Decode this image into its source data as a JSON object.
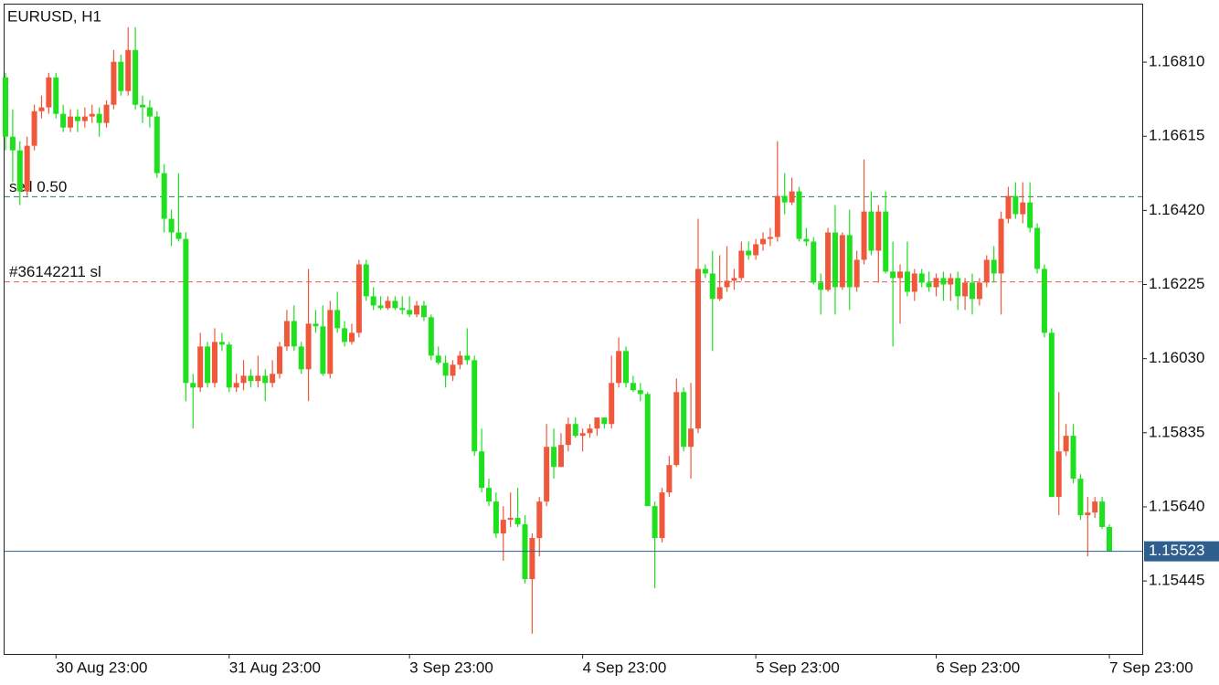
{
  "chart_data": {
    "type": "candlestick",
    "title": "EURUSD, H1",
    "categories": [
      null,
      null,
      null,
      null,
      null,
      null,
      null,
      "30 Aug 23:00",
      null,
      null,
      null,
      null,
      null,
      null,
      null,
      null,
      null,
      null,
      null,
      null,
      null,
      null,
      null,
      null,
      null,
      null,
      null,
      null,
      null,
      null,
      null,
      "31 Aug 23:00",
      null,
      null,
      null,
      null,
      null,
      null,
      null,
      null,
      null,
      null,
      null,
      null,
      null,
      null,
      null,
      null,
      null,
      null,
      null,
      null,
      null,
      null,
      null,
      null,
      "3 Sep 23:00",
      null,
      null,
      null,
      null,
      null,
      null,
      null,
      null,
      null,
      null,
      null,
      null,
      null,
      null,
      null,
      null,
      null,
      null,
      null,
      null,
      null,
      null,
      null,
      "4 Sep 23:00",
      null,
      null,
      null,
      null,
      null,
      null,
      null,
      null,
      null,
      null,
      null,
      null,
      null,
      null,
      null,
      null,
      null,
      null,
      null,
      null,
      null,
      null,
      null,
      "5 Sep 23:00",
      null,
      null,
      null,
      null,
      null,
      null,
      null,
      null,
      null,
      null,
      null,
      null,
      null,
      null,
      null,
      null,
      null,
      null,
      null,
      null,
      null,
      null,
      null,
      null,
      "6 Sep 23:00",
      null,
      null,
      null,
      null,
      null,
      null,
      null,
      null,
      null,
      null,
      null,
      null,
      null,
      null,
      null,
      null,
      null,
      null,
      null,
      null,
      null,
      null,
      null,
      "7 Sep 23:00"
    ],
    "values": [
      [
        1.1677,
        1.16782,
        1.16578,
        1.16614
      ],
      [
        1.16614,
        1.16686,
        1.16494,
        1.16578
      ],
      [
        1.16578,
        1.16602,
        1.16434,
        1.1647
      ],
      [
        1.1647,
        1.16614,
        1.16458,
        1.1659
      ],
      [
        1.1659,
        1.16698,
        1.16578,
        1.16681
      ],
      [
        1.16681,
        1.16722,
        1.16662,
        1.16691
      ],
      [
        1.16691,
        1.16782,
        1.16674,
        1.1677
      ],
      [
        1.1677,
        1.16782,
        1.16662,
        1.16674
      ],
      [
        1.16674,
        1.16698,
        1.16626,
        1.16638
      ],
      [
        1.16638,
        1.16686,
        1.16626,
        1.16667
      ],
      [
        1.16667,
        1.16686,
        1.16626,
        1.16655
      ],
      [
        1.16655,
        1.16691,
        1.16638,
        1.16667
      ],
      [
        1.16667,
        1.16698,
        1.1665,
        1.16674
      ],
      [
        1.16674,
        1.16691,
        1.16614,
        1.1665
      ],
      [
        1.1665,
        1.1671,
        1.16638,
        1.16698
      ],
      [
        1.16698,
        1.16842,
        1.16686,
        1.16811
      ],
      [
        1.16811,
        1.1683,
        1.16722,
        1.16734
      ],
      [
        1.16734,
        1.16902,
        1.16722,
        1.16842
      ],
      [
        1.16842,
        1.16902,
        1.16686,
        1.16698
      ],
      [
        1.16698,
        1.16722,
        1.1665,
        1.16691
      ],
      [
        1.16691,
        1.1671,
        1.16638,
        1.16667
      ],
      [
        1.16667,
        1.16681,
        1.16506,
        1.16518
      ],
      [
        1.16518,
        1.16542,
        1.16362,
        1.16398
      ],
      [
        1.16398,
        1.16422,
        1.16326,
        1.16362
      ],
      [
        1.16362,
        1.16518,
        1.16338,
        1.16345
      ],
      [
        1.16345,
        1.16362,
        1.15918,
        1.15966
      ],
      [
        1.15966,
        1.1599,
        1.15846,
        1.15954
      ],
      [
        1.15954,
        1.16098,
        1.15942,
        1.16062
      ],
      [
        1.16062,
        1.16074,
        1.15954,
        1.15966
      ],
      [
        1.15966,
        1.1611,
        1.15954,
        1.16074
      ],
      [
        1.16074,
        1.16098,
        1.1605,
        1.16067
      ],
      [
        1.16067,
        1.16074,
        1.15942,
        1.15954
      ],
      [
        1.15954,
        1.1599,
        1.15942,
        1.15966
      ],
      [
        1.15966,
        1.16026,
        1.15947,
        1.15985
      ],
      [
        1.15985,
        1.16002,
        1.15954,
        1.15971
      ],
      [
        1.15971,
        1.16038,
        1.15954,
        1.15985
      ],
      [
        1.15985,
        1.16002,
        1.15918,
        1.15966
      ],
      [
        1.15966,
        1.16026,
        1.15954,
        1.1599
      ],
      [
        1.1599,
        1.16074,
        1.15978,
        1.16062
      ],
      [
        1.16062,
        1.16158,
        1.1605,
        1.16129
      ],
      [
        1.16129,
        1.1617,
        1.1605,
        1.16062
      ],
      [
        1.16062,
        1.16074,
        1.1599,
        1.16002
      ],
      [
        1.16002,
        1.16266,
        1.15918,
        1.16122
      ],
      [
        1.16122,
        1.16158,
        1.16098,
        1.16115
      ],
      [
        1.16115,
        1.1617,
        1.15985,
        1.1599
      ],
      [
        1.1599,
        1.16182,
        1.15978,
        1.16158
      ],
      [
        1.16158,
        1.16206,
        1.16098,
        1.1611
      ],
      [
        1.1611,
        1.16129,
        1.16062,
        1.16074
      ],
      [
        1.16074,
        1.16122,
        1.16067,
        1.16098
      ],
      [
        1.16098,
        1.1629,
        1.16086,
        1.16278
      ],
      [
        1.16278,
        1.1629,
        1.16182,
        1.16194
      ],
      [
        1.16194,
        1.16218,
        1.16158,
        1.1617
      ],
      [
        1.1617,
        1.16194,
        1.16158,
        1.16163
      ],
      [
        1.16163,
        1.16194,
        1.16158,
        1.16182
      ],
      [
        1.16182,
        1.16194,
        1.16158,
        1.16163
      ],
      [
        1.16163,
        1.16194,
        1.16146,
        1.16158
      ],
      [
        1.16158,
        1.16194,
        1.16139,
        1.16146
      ],
      [
        1.16146,
        1.16182,
        1.16139,
        1.1617
      ],
      [
        1.1617,
        1.16182,
        1.16129,
        1.16139
      ],
      [
        1.16139,
        1.16146,
        1.16026,
        1.16038
      ],
      [
        1.16038,
        1.16062,
        1.16014,
        1.16019
      ],
      [
        1.16019,
        1.16038,
        1.15954,
        1.15985
      ],
      [
        1.15985,
        1.16026,
        1.15971,
        1.16014
      ],
      [
        1.16014,
        1.1605,
        1.16002,
        1.16038
      ],
      [
        1.16038,
        1.1611,
        1.16014,
        1.16026
      ],
      [
        1.16026,
        1.16038,
        1.15774,
        1.15786
      ],
      [
        1.15786,
        1.15846,
        1.15678,
        1.1569
      ],
      [
        1.1569,
        1.15714,
        1.15642,
        1.15654
      ],
      [
        1.15654,
        1.15678,
        1.15558,
        1.1557
      ],
      [
        1.1557,
        1.15642,
        1.15498,
        1.15606
      ],
      [
        1.15606,
        1.15678,
        1.15587,
        1.15611
      ],
      [
        1.15611,
        1.1569,
        1.15587,
        1.15594
      ],
      [
        1.15594,
        1.15618,
        1.15438,
        1.1545
      ],
      [
        1.1545,
        1.1557,
        1.15306,
        1.15558
      ],
      [
        1.15558,
        1.15666,
        1.1551,
        1.15654
      ],
      [
        1.15654,
        1.15858,
        1.15642,
        1.15798
      ],
      [
        1.15798,
        1.15846,
        1.15714,
        1.15745
      ],
      [
        1.15745,
        1.15834,
        1.15745,
        1.15803
      ],
      [
        1.15803,
        1.15875,
        1.15786,
        1.15858
      ],
      [
        1.15858,
        1.15875,
        1.15822,
        1.15827
      ],
      [
        1.15827,
        1.15846,
        1.15786,
        1.15834
      ],
      [
        1.15834,
        1.15858,
        1.15822,
        1.15846
      ],
      [
        1.15846,
        1.15875,
        1.15827,
        1.15875
      ],
      [
        1.15875,
        1.15875,
        1.15846,
        1.15858
      ],
      [
        1.15858,
        1.16038,
        1.15846,
        1.15966
      ],
      [
        1.15966,
        1.16086,
        1.15954,
        1.1605
      ],
      [
        1.1605,
        1.16062,
        1.15954,
        1.15966
      ],
      [
        1.15966,
        1.15985,
        1.15942,
        1.15947
      ],
      [
        1.15947,
        1.15966,
        1.15918,
        1.15937
      ],
      [
        1.15937,
        1.15942,
        1.15642,
        1.15642
      ],
      [
        1.15642,
        1.15654,
        1.15426,
        1.15558
      ],
      [
        1.15558,
        1.1569,
        1.15546,
        1.15678
      ],
      [
        1.15678,
        1.15774,
        1.15666,
        1.1575
      ],
      [
        1.1575,
        1.15978,
        1.15745,
        1.15942
      ],
      [
        1.15942,
        1.15954,
        1.15786,
        1.15798
      ],
      [
        1.15798,
        1.15966,
        1.15714,
        1.15846
      ],
      [
        1.15846,
        1.16398,
        1.15834,
        1.16266
      ],
      [
        1.16266,
        1.16278,
        1.16242,
        1.16254
      ],
      [
        1.16254,
        1.16314,
        1.1605,
        1.16187
      ],
      [
        1.16187,
        1.16302,
        1.16182,
        1.16218
      ],
      [
        1.16218,
        1.16326,
        1.16206,
        1.16235
      ],
      [
        1.16235,
        1.16266,
        1.16211,
        1.16242
      ],
      [
        1.16242,
        1.16338,
        1.16235,
        1.16314
      ],
      [
        1.16314,
        1.16338,
        1.1629,
        1.16302
      ],
      [
        1.16302,
        1.16345,
        1.1629,
        1.16331
      ],
      [
        1.16331,
        1.16362,
        1.16314,
        1.16345
      ],
      [
        1.16345,
        1.16374,
        1.16326,
        1.1635
      ],
      [
        1.1635,
        1.16602,
        1.16338,
        1.16458
      ],
      [
        1.16458,
        1.16518,
        1.1641,
        1.16441
      ],
      [
        1.16441,
        1.16506,
        1.16434,
        1.1647
      ],
      [
        1.1647,
        1.16482,
        1.16338,
        1.16345
      ],
      [
        1.16345,
        1.16374,
        1.16326,
        1.16338
      ],
      [
        1.16338,
        1.1635,
        1.16225,
        1.1623
      ],
      [
        1.1623,
        1.16254,
        1.16146,
        1.16211
      ],
      [
        1.16211,
        1.16374,
        1.16206,
        1.16362
      ],
      [
        1.16362,
        1.16434,
        1.16146,
        1.16218
      ],
      [
        1.16218,
        1.16362,
        1.16211,
        1.16355
      ],
      [
        1.16355,
        1.16422,
        1.16158,
        1.16218
      ],
      [
        1.16218,
        1.16314,
        1.16206,
        1.1629
      ],
      [
        1.1629,
        1.16554,
        1.16278,
        1.16417
      ],
      [
        1.16417,
        1.1647,
        1.16302,
        1.16314
      ],
      [
        1.16314,
        1.16434,
        1.1623,
        1.16417
      ],
      [
        1.16417,
        1.1647,
        1.16254,
        1.16259
      ],
      [
        1.16259,
        1.16338,
        1.16062,
        1.16242
      ],
      [
        1.16242,
        1.16278,
        1.16122,
        1.16259
      ],
      [
        1.16259,
        1.16338,
        1.16194,
        1.16206
      ],
      [
        1.16206,
        1.16266,
        1.16182,
        1.16254
      ],
      [
        1.16254,
        1.16266,
        1.16218,
        1.1623
      ],
      [
        1.1623,
        1.16259,
        1.16206,
        1.16218
      ],
      [
        1.16218,
        1.16254,
        1.16194,
        1.16242
      ],
      [
        1.16242,
        1.16259,
        1.16182,
        1.16225
      ],
      [
        1.16225,
        1.16254,
        1.16182,
        1.16242
      ],
      [
        1.16242,
        1.16259,
        1.16158,
        1.16194
      ],
      [
        1.16194,
        1.16242,
        1.16158,
        1.1623
      ],
      [
        1.1623,
        1.16254,
        1.16146,
        1.16187
      ],
      [
        1.16187,
        1.16242,
        1.1617,
        1.1623
      ],
      [
        1.1623,
        1.16302,
        1.16218,
        1.1629
      ],
      [
        1.1629,
        1.16326,
        1.1623,
        1.16254
      ],
      [
        1.16254,
        1.16417,
        1.16146,
        1.16398
      ],
      [
        1.16398,
        1.16482,
        1.16386,
        1.16458
      ],
      [
        1.16458,
        1.16494,
        1.16398,
        1.1641
      ],
      [
        1.1641,
        1.16494,
        1.16386,
        1.16441
      ],
      [
        1.16441,
        1.16494,
        1.16362,
        1.16374
      ],
      [
        1.16374,
        1.16386,
        1.16254,
        1.16266
      ],
      [
        1.16266,
        1.16278,
        1.16086,
        1.16098
      ],
      [
        1.16098,
        1.1611,
        1.15666,
        1.15666
      ],
      [
        1.15666,
        1.15942,
        1.15618,
        1.15786
      ],
      [
        1.15786,
        1.15858,
        1.15774,
        1.15827
      ],
      [
        1.15827,
        1.15858,
        1.15702,
        1.15714
      ],
      [
        1.15714,
        1.15726,
        1.15606,
        1.15618
      ],
      [
        1.15618,
        1.15666,
        1.1551,
        1.15625
      ],
      [
        1.15625,
        1.15666,
        1.15611,
        1.15654
      ],
      [
        1.15654,
        1.15666,
        1.15582,
        1.15587
      ],
      [
        1.15587,
        1.15594,
        1.15523,
        1.15523
      ]
    ],
    "up_color": "#f0583c",
    "down_color": "#1ee01e",
    "ylim": [
      1.15253,
      1.16964
    ],
    "yticks": [
      {
        "value": 1.1681,
        "label": "1.16810"
      },
      1.16615,
      {
        "value": 1.1642,
        "label": "1.16420"
      },
      1.16225,
      {
        "value": 1.1603,
        "label": "1.16030"
      },
      1.15835,
      {
        "value": 1.1564,
        "label": "1.15640"
      },
      1.15445
    ],
    "levels": [
      {
        "label": "sell 0.50",
        "value": 1.16456,
        "color": "#2e7a5a"
      },
      {
        "label": "#36142211 sl",
        "value": 1.16232,
        "color": "#e0604a"
      }
    ],
    "current_price": 1.15523,
    "current_color": "#2f5f8f"
  }
}
